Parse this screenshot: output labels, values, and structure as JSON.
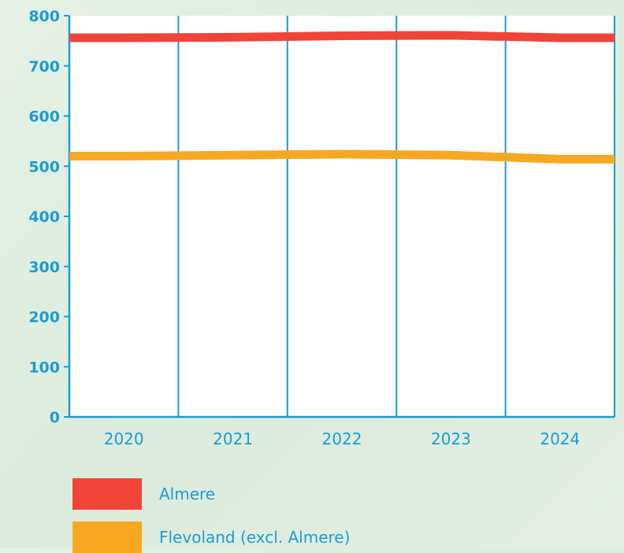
{
  "chart_data": {
    "type": "line",
    "title": "",
    "xlabel": "",
    "ylabel": "",
    "categories": [
      "2020",
      "2021",
      "2022",
      "2023",
      "2024"
    ],
    "x_tick_labels": [
      "2020",
      "2021",
      "2022",
      "2023",
      "2024"
    ],
    "y_tick_labels": [
      "0",
      "100",
      "200",
      "300",
      "400",
      "500",
      "600",
      "700",
      "800"
    ],
    "y_ticks": [
      0,
      100,
      200,
      300,
      400,
      500,
      600,
      700,
      800
    ],
    "ylim": [
      0,
      800
    ],
    "grid": "vertical",
    "legend_position": "bottom",
    "series": [
      {
        "name": "Almere",
        "color": "#f04438",
        "values": [
          756,
          757,
          760,
          761,
          756
        ]
      },
      {
        "name": "Flevoland (excl. Almere)",
        "color": "#f7a823",
        "values": [
          520,
          522,
          524,
          522,
          514
        ]
      }
    ]
  },
  "colors": {
    "axis": "#1b9bd7",
    "plot_background": "#ffffff"
  }
}
